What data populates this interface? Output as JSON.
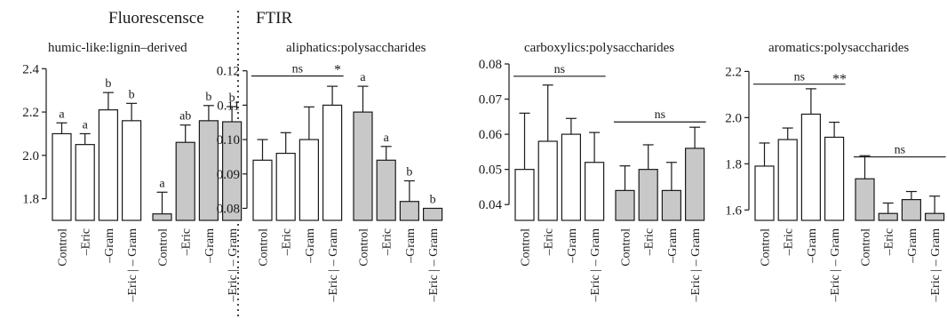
{
  "sections": {
    "left_title": "Fluorescensce",
    "right_title": "FTIR"
  },
  "colors": {
    "open_bar": "#ffffff",
    "filled_bar": "#c8c8c8",
    "stroke": "#1a1a1a"
  },
  "chart_data": [
    {
      "type": "bar",
      "title": "humic-like:lignin–derived",
      "categories": [
        "Control",
        "–Eric",
        "–Gram",
        "–Eric | – Gram"
      ],
      "series": [
        {
          "style": "open",
          "values": [
            2.1,
            2.05,
            2.21,
            2.16
          ],
          "errors": [
            0.05,
            0.05,
            0.08,
            0.08
          ],
          "labels": [
            "a",
            "a",
            "b",
            "b"
          ]
        },
        {
          "style": "filled",
          "values": [
            1.73,
            2.06,
            2.16,
            2.155
          ],
          "errors": [
            0.1,
            0.08,
            0.07,
            0.07
          ],
          "labels": [
            "a",
            "ab",
            "b",
            "b"
          ]
        }
      ],
      "yticks": [
        1.8,
        2.0,
        2.2,
        2.4
      ],
      "ytick_labels": [
        "1.8",
        "2.0",
        "2.2",
        "2.4"
      ],
      "ylim": [
        1.7,
        2.43
      ],
      "annotations": []
    },
    {
      "type": "bar",
      "title": "aliphatics:polysaccharides",
      "categories": [
        "Control",
        "–Eric",
        "–Gram",
        "–Eric | – Gram"
      ],
      "series": [
        {
          "style": "open",
          "values": [
            0.094,
            0.096,
            0.1,
            0.11
          ],
          "errors": [
            0.006,
            0.006,
            0.0095,
            0.0055
          ],
          "labels": []
        },
        {
          "style": "filled",
          "values": [
            0.108,
            0.094,
            0.082,
            0.08
          ],
          "errors": [
            0.0075,
            0.004,
            0.006,
            0.0
          ],
          "labels": [
            "a",
            "a",
            "b",
            "b"
          ]
        }
      ],
      "yticks": [
        0.08,
        0.09,
        0.1,
        0.11,
        0.12
      ],
      "ytick_labels": [
        "0.08",
        "0.09",
        "0.10",
        "0.11",
        "0.12"
      ],
      "ylim": [
        0.0765,
        0.1225
      ],
      "annotations": [
        {
          "kind": "bracket",
          "group": 0,
          "text": "ns",
          "y": 0.1185
        },
        {
          "kind": "star",
          "text": "*",
          "y": 0.1205
        }
      ]
    },
    {
      "type": "bar",
      "title": "carboxylics:polysaccharides",
      "categories": [
        "Control",
        "–Eric",
        "–Gram",
        "–Eric | – Gram"
      ],
      "series": [
        {
          "style": "open",
          "values": [
            0.05,
            0.058,
            0.06,
            0.052
          ],
          "errors": [
            0.016,
            0.016,
            0.0045,
            0.0085
          ],
          "labels": []
        },
        {
          "style": "filled",
          "values": [
            0.044,
            0.05,
            0.044,
            0.056
          ],
          "errors": [
            0.007,
            0.007,
            0.008,
            0.006
          ],
          "labels": []
        }
      ],
      "yticks": [
        0.04,
        0.05,
        0.06,
        0.07,
        0.08
      ],
      "ytick_labels": [
        "0.04",
        "0.05",
        "0.06",
        "0.07",
        "0.08"
      ],
      "ylim": [
        0.0355,
        0.0805
      ],
      "annotations": [
        {
          "kind": "bracket",
          "group": 0,
          "text": "ns",
          "y": 0.0765
        },
        {
          "kind": "bracket",
          "group": 1,
          "text": "ns",
          "y": 0.0635
        }
      ]
    },
    {
      "type": "bar",
      "title": "aromatics:polysaccharides",
      "categories": [
        "Control",
        "–Eric",
        "–Gram",
        "–Eric | – Gram"
      ],
      "series": [
        {
          "style": "open",
          "values": [
            1.79,
            1.905,
            2.015,
            1.915
          ],
          "errors": [
            0.1,
            0.05,
            0.11,
            0.065
          ],
          "labels": []
        },
        {
          "style": "filled",
          "values": [
            1.735,
            1.585,
            1.645,
            1.585
          ],
          "errors": [
            0.1,
            0.045,
            0.035,
            0.075
          ],
          "labels": []
        }
      ],
      "yticks": [
        1.6,
        1.8,
        2.0,
        2.2
      ],
      "ytick_labels": [
        "1.6",
        "1.8",
        "2.0",
        "2.2"
      ],
      "ylim": [
        1.555,
        2.24
      ],
      "annotations": [
        {
          "kind": "bracket",
          "group": 0,
          "text": "ns",
          "y": 2.145
        },
        {
          "kind": "bracket",
          "group": 1,
          "text": "ns",
          "y": 1.83
        },
        {
          "kind": "star",
          "text": "**",
          "y": 2.17
        }
      ]
    }
  ]
}
